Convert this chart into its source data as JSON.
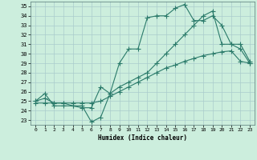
{
  "xlabel": "Humidex (Indice chaleur)",
  "bg_color": "#cceedd",
  "grid_color": "#aacccc",
  "line_color": "#2a7a6a",
  "xlim": [
    -0.5,
    23.5
  ],
  "ylim": [
    22.5,
    35.5
  ],
  "xticks": [
    0,
    1,
    2,
    3,
    4,
    5,
    6,
    7,
    8,
    9,
    10,
    11,
    12,
    13,
    14,
    15,
    16,
    17,
    18,
    19,
    20,
    21,
    22,
    23
  ],
  "yticks": [
    23,
    24,
    25,
    26,
    27,
    28,
    29,
    30,
    31,
    32,
    33,
    34,
    35
  ],
  "line1_x": [
    0,
    1,
    2,
    3,
    4,
    5,
    6,
    7,
    8,
    9,
    10,
    11,
    12,
    13,
    14,
    15,
    16,
    17,
    18,
    19,
    20,
    21,
    22,
    23
  ],
  "line1_y": [
    25.0,
    25.8,
    24.5,
    24.5,
    24.5,
    24.5,
    22.8,
    23.3,
    25.8,
    29.0,
    30.5,
    30.5,
    33.8,
    34.0,
    34.0,
    34.8,
    35.2,
    33.5,
    33.5,
    34.0,
    33.0,
    31.0,
    31.0,
    29.2
  ],
  "line2_x": [
    0,
    1,
    2,
    3,
    4,
    5,
    6,
    7,
    8,
    9,
    10,
    11,
    12,
    13,
    14,
    15,
    16,
    17,
    18,
    19,
    20,
    21,
    22,
    23
  ],
  "line2_y": [
    25.0,
    25.3,
    24.8,
    24.8,
    24.5,
    24.3,
    24.3,
    26.5,
    25.8,
    26.5,
    27.0,
    27.5,
    28.0,
    29.0,
    30.0,
    31.0,
    32.0,
    33.0,
    34.0,
    34.5,
    31.0,
    31.0,
    30.5,
    29.0
  ],
  "line3_x": [
    0,
    1,
    2,
    3,
    4,
    5,
    6,
    7,
    8,
    9,
    10,
    11,
    12,
    13,
    14,
    15,
    16,
    17,
    18,
    19,
    20,
    21,
    22,
    23
  ],
  "line3_y": [
    24.8,
    24.8,
    24.8,
    24.8,
    24.8,
    24.8,
    24.8,
    25.0,
    25.5,
    26.0,
    26.5,
    27.0,
    27.5,
    28.0,
    28.5,
    28.8,
    29.2,
    29.5,
    29.8,
    30.0,
    30.2,
    30.3,
    29.2,
    29.0
  ]
}
